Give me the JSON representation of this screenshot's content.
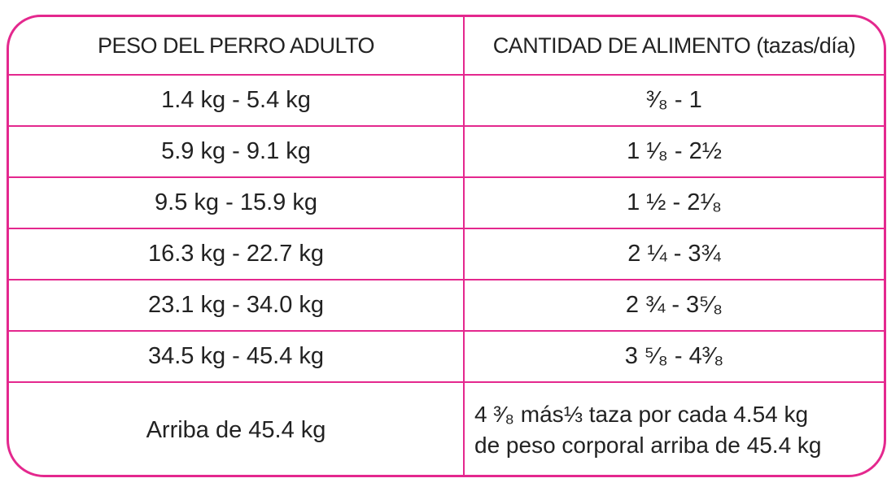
{
  "headers": [
    "PESO DEL PERRO ADULTO",
    "CANTIDAD DE ALIMENTO (tazas/día)"
  ],
  "rows": [
    {
      "weight": "1.4 kg - 5.4 kg",
      "amount": "³⁄₈ - 1"
    },
    {
      "weight": "5.9 kg - 9.1 kg",
      "amount": "1 ¹⁄₈ - 2½"
    },
    {
      "weight": "9.5 kg - 15.9 kg",
      "amount": "1 ½ - 2¹⁄₈"
    },
    {
      "weight": "16.3 kg - 22.7 kg",
      "amount": "2 ¼ - 3¾"
    },
    {
      "weight": "23.1 kg - 34.0 kg",
      "amount": "2 ¾ - 3⁵⁄₈"
    },
    {
      "weight": "34.5 kg - 45.4 kg",
      "amount": "3 ⁵⁄₈ - 4³⁄₈"
    }
  ],
  "last_row": {
    "weight": "Arriba de 45.4 kg",
    "amount_line1": "4 ³⁄₈ más⅓ taza por cada 4.54 kg",
    "amount_line2": "de peso corporal arriba de 45.4 kg"
  },
  "colors": {
    "border": "#e4288e",
    "text": "#222222"
  }
}
